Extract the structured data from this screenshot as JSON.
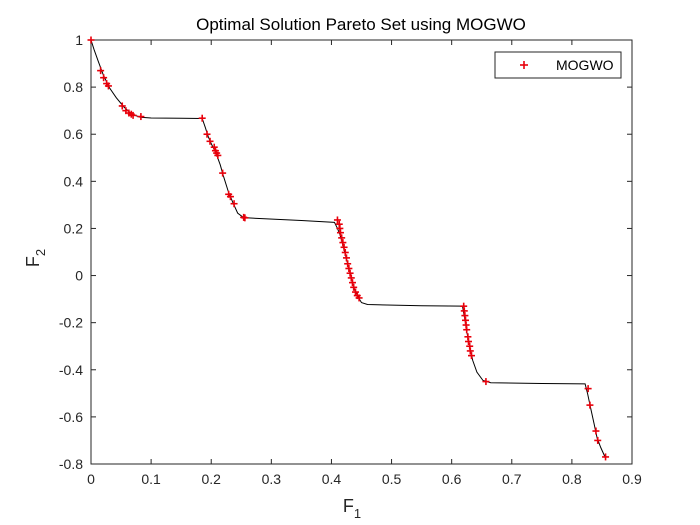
{
  "chart_data": {
    "type": "scatter",
    "title": "Optimal Solution Pareto Set using MOGWO",
    "xlabel_main": "F",
    "xlabel_sub": "1",
    "ylabel_main": "F",
    "ylabel_sub": "2",
    "xlim": [
      0,
      0.9
    ],
    "ylim": [
      -0.8,
      1
    ],
    "xticks": [
      0,
      0.1,
      0.2,
      0.3,
      0.4,
      0.5,
      0.6,
      0.7,
      0.8,
      0.9
    ],
    "xtick_labels": [
      "0",
      "0.1",
      "0.2",
      "0.3",
      "0.4",
      "0.5",
      "0.6",
      "0.7",
      "0.8",
      "0.9"
    ],
    "yticks": [
      -0.8,
      -0.6,
      -0.4,
      -0.2,
      0,
      0.2,
      0.4,
      0.6,
      0.8,
      1
    ],
    "ytick_labels": [
      "-0.8",
      "-0.6",
      "-0.4",
      "-0.2",
      "0",
      "0.2",
      "0.4",
      "0.6",
      "0.8",
      "1"
    ],
    "grid": false,
    "legend_position": "top-right",
    "series": [
      {
        "name": "MOGWO",
        "marker": "+",
        "color": "#e8000b",
        "points": [
          [
            0.0,
            1.0
          ],
          [
            0.016,
            0.87
          ],
          [
            0.021,
            0.84
          ],
          [
            0.026,
            0.815
          ],
          [
            0.029,
            0.805
          ],
          [
            0.052,
            0.72
          ],
          [
            0.058,
            0.7
          ],
          [
            0.063,
            0.69
          ],
          [
            0.067,
            0.685
          ],
          [
            0.07,
            0.68
          ],
          [
            0.083,
            0.675
          ],
          [
            0.185,
            0.668
          ],
          [
            0.193,
            0.6
          ],
          [
            0.198,
            0.57
          ],
          [
            0.205,
            0.545
          ],
          [
            0.207,
            0.53
          ],
          [
            0.209,
            0.52
          ],
          [
            0.211,
            0.51
          ],
          [
            0.219,
            0.435
          ],
          [
            0.229,
            0.345
          ],
          [
            0.232,
            0.335
          ],
          [
            0.238,
            0.305
          ],
          [
            0.254,
            0.247
          ],
          [
            0.256,
            0.245
          ],
          [
            0.41,
            0.236
          ],
          [
            0.413,
            0.218
          ],
          [
            0.414,
            0.2
          ],
          [
            0.415,
            0.182
          ],
          [
            0.417,
            0.16
          ],
          [
            0.419,
            0.14
          ],
          [
            0.421,
            0.12
          ],
          [
            0.423,
            0.098
          ],
          [
            0.425,
            0.075
          ],
          [
            0.427,
            0.05
          ],
          [
            0.429,
            0.03
          ],
          [
            0.431,
            0.01
          ],
          [
            0.433,
            -0.01
          ],
          [
            0.435,
            -0.03
          ],
          [
            0.437,
            -0.05
          ],
          [
            0.44,
            -0.07
          ],
          [
            0.443,
            -0.085
          ],
          [
            0.446,
            -0.095
          ],
          [
            0.62,
            -0.13
          ],
          [
            0.621,
            -0.15
          ],
          [
            0.622,
            -0.17
          ],
          [
            0.623,
            -0.19
          ],
          [
            0.624,
            -0.21
          ],
          [
            0.625,
            -0.23
          ],
          [
            0.627,
            -0.26
          ],
          [
            0.628,
            -0.28
          ],
          [
            0.63,
            -0.3
          ],
          [
            0.631,
            -0.32
          ],
          [
            0.633,
            -0.34
          ],
          [
            0.657,
            -0.45
          ],
          [
            0.827,
            -0.48
          ],
          [
            0.83,
            -0.55
          ],
          [
            0.84,
            -0.66
          ],
          [
            0.843,
            -0.7
          ],
          [
            0.856,
            -0.77
          ]
        ]
      }
    ],
    "front_curve": {
      "color": "#000000",
      "points": [
        [
          0.0,
          1.0
        ],
        [
          0.005,
          0.96
        ],
        [
          0.012,
          0.91
        ],
        [
          0.02,
          0.855
        ],
        [
          0.03,
          0.8
        ],
        [
          0.042,
          0.755
        ],
        [
          0.055,
          0.715
        ],
        [
          0.068,
          0.685
        ],
        [
          0.082,
          0.672
        ],
        [
          0.1,
          0.669
        ],
        [
          0.15,
          0.668
        ],
        [
          0.185,
          0.667
        ],
        [
          0.19,
          0.63
        ],
        [
          0.195,
          0.59
        ],
        [
          0.2,
          0.56
        ],
        [
          0.205,
          0.535
        ],
        [
          0.21,
          0.505
        ],
        [
          0.215,
          0.47
        ],
        [
          0.22,
          0.425
        ],
        [
          0.228,
          0.36
        ],
        [
          0.236,
          0.31
        ],
        [
          0.244,
          0.265
        ],
        [
          0.254,
          0.246
        ],
        [
          0.28,
          0.242
        ],
        [
          0.35,
          0.234
        ],
        [
          0.405,
          0.226
        ],
        [
          0.41,
          0.2
        ],
        [
          0.414,
          0.175
        ],
        [
          0.418,
          0.14
        ],
        [
          0.422,
          0.1
        ],
        [
          0.426,
          0.06
        ],
        [
          0.43,
          0.02
        ],
        [
          0.434,
          -0.02
        ],
        [
          0.438,
          -0.055
        ],
        [
          0.443,
          -0.085
        ],
        [
          0.45,
          -0.115
        ],
        [
          0.46,
          -0.123
        ],
        [
          0.55,
          -0.128
        ],
        [
          0.618,
          -0.13
        ],
        [
          0.62,
          -0.16
        ],
        [
          0.623,
          -0.2
        ],
        [
          0.626,
          -0.25
        ],
        [
          0.63,
          -0.3
        ],
        [
          0.635,
          -0.36
        ],
        [
          0.642,
          -0.41
        ],
        [
          0.652,
          -0.445
        ],
        [
          0.665,
          -0.455
        ],
        [
          0.75,
          -0.458
        ],
        [
          0.822,
          -0.46
        ],
        [
          0.826,
          -0.5
        ],
        [
          0.831,
          -0.56
        ],
        [
          0.837,
          -0.63
        ],
        [
          0.842,
          -0.69
        ],
        [
          0.848,
          -0.73
        ],
        [
          0.856,
          -0.775
        ]
      ]
    }
  }
}
